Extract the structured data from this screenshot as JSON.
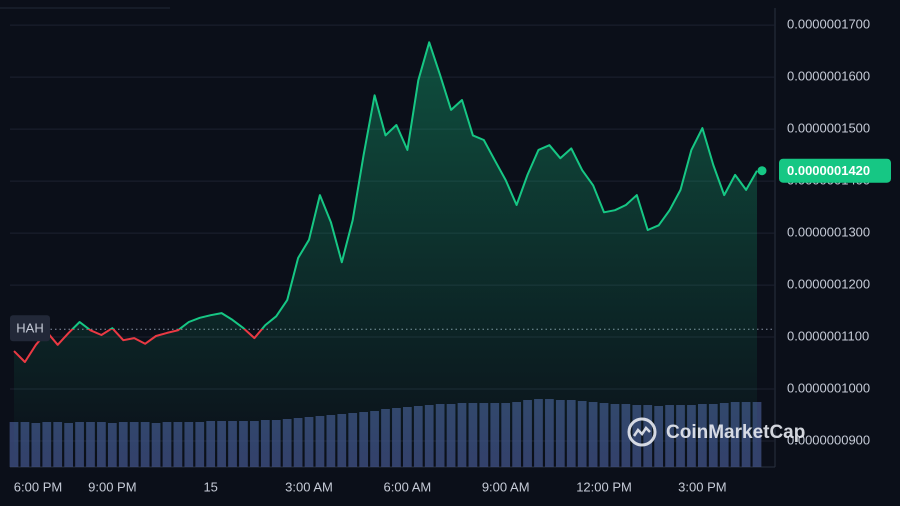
{
  "chart_data": {
    "type": "line",
    "symbol": "HAH",
    "watermark": "CoinMarketCap",
    "categories": [
      "6:00 PM",
      null,
      null,
      null,
      null,
      null,
      null,
      null,
      null,
      "9:00 PM",
      null,
      null,
      null,
      null,
      null,
      null,
      null,
      null,
      "15",
      null,
      null,
      null,
      null,
      null,
      null,
      null,
      null,
      "3:00 AM",
      null,
      null,
      null,
      null,
      null,
      null,
      null,
      null,
      "6:00 AM",
      null,
      null,
      null,
      null,
      null,
      null,
      null,
      null,
      "9:00 AM",
      null,
      null,
      null,
      null,
      null,
      null,
      null,
      null,
      "12:00 PM",
      null,
      null,
      null,
      null,
      null,
      null,
      null,
      null,
      "3:00 PM",
      null,
      null,
      null,
      null,
      null
    ],
    "series": [
      {
        "name": "HAH",
        "color_up": "#16c784",
        "color_down": "#ea3943",
        "values": [
          1.073e-07,
          1.052e-07,
          1.085e-07,
          1.11e-07,
          1.085e-07,
          1.108e-07,
          1.129e-07,
          1.113e-07,
          1.104e-07,
          1.117e-07,
          1.094e-07,
          1.098e-07,
          1.087e-07,
          1.102e-07,
          1.108e-07,
          1.113e-07,
          1.129e-07,
          1.137e-07,
          1.142e-07,
          1.146e-07,
          1.133e-07,
          1.117e-07,
          1.098e-07,
          1.123e-07,
          1.14e-07,
          1.171e-07,
          1.252e-07,
          1.287e-07,
          1.373e-07,
          1.321e-07,
          1.244e-07,
          1.325e-07,
          1.45e-07,
          1.565e-07,
          1.488e-07,
          1.508e-07,
          1.46e-07,
          1.594e-07,
          1.667e-07,
          1.604e-07,
          1.537e-07,
          1.556e-07,
          1.488e-07,
          1.479e-07,
          1.44e-07,
          1.402e-07,
          1.354e-07,
          1.412e-07,
          1.46e-07,
          1.469e-07,
          1.444e-07,
          1.463e-07,
          1.421e-07,
          1.392e-07,
          1.34e-07,
          1.344e-07,
          1.354e-07,
          1.373e-07,
          1.306e-07,
          1.315e-07,
          1.344e-07,
          1.383e-07,
          1.46e-07,
          1.502e-07,
          1.431e-07,
          1.373e-07,
          1.412e-07,
          1.383e-07,
          1.42e-07
        ],
        "last_label": "0.0000001420"
      }
    ],
    "baseline": 1.115e-07,
    "volume": {
      "color": "#3b4a7a",
      "values": [
        45,
        45,
        44,
        45,
        45,
        44,
        45,
        45,
        45,
        44,
        45,
        45,
        45,
        44,
        45,
        45,
        45,
        45,
        46,
        46,
        46,
        46,
        46,
        47,
        47,
        48,
        49,
        50,
        51,
        52,
        53,
        54,
        55,
        56,
        58,
        59,
        60,
        61,
        62,
        63,
        63,
        64,
        64,
        64,
        64,
        64,
        65,
        67,
        68,
        68,
        67,
        67,
        66,
        65,
        64,
        63,
        63,
        62,
        62,
        61,
        62,
        62,
        62,
        63,
        63,
        64,
        65,
        65,
        65
      ]
    },
    "ylim": [
      8.5e-08,
      1.733e-07
    ],
    "yticks": [
      {
        "value": 9e-08,
        "label": "0.0000000900"
      },
      {
        "value": 1e-07,
        "label": "0.0000001000"
      },
      {
        "value": 1.1e-07,
        "label": "0.0000001100"
      },
      {
        "value": 1.2e-07,
        "label": "0.0000001200"
      },
      {
        "value": 1.3e-07,
        "label": "0.0000001300"
      },
      {
        "value": 1.4e-07,
        "label": "0.0000001400"
      },
      {
        "value": 1.5e-07,
        "label": "0.0000001500"
      },
      {
        "value": 1.6e-07,
        "label": "0.0000001600"
      },
      {
        "value": 1.7e-07,
        "label": "0.0000001700"
      }
    ],
    "grid": true
  }
}
